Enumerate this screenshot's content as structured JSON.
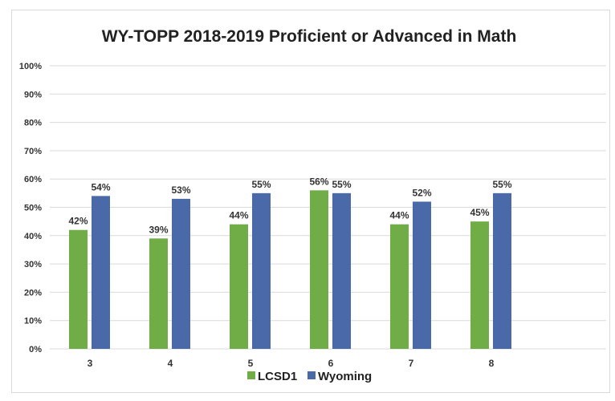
{
  "chart_data": {
    "type": "bar",
    "title": "WY-TOPP 2018-2019 Proficient or Advanced in Math",
    "xlabel": "",
    "ylabel": "",
    "categories": [
      "3",
      "4",
      "5",
      "6",
      "7",
      "8"
    ],
    "series": [
      {
        "name": "LCSD1",
        "color": "#70ad47",
        "values": [
          42,
          39,
          44,
          56,
          44,
          45
        ],
        "labels": [
          "42%",
          "39%",
          "44%",
          "56%",
          "44%",
          "45%"
        ]
      },
      {
        "name": "Wyoming",
        "color": "#4a69a8",
        "values": [
          54,
          53,
          55,
          55,
          52,
          55
        ],
        "labels": [
          "54%",
          "53%",
          "55%",
          "55%",
          "52%",
          "55%"
        ]
      }
    ],
    "ylim": [
      0,
      100
    ],
    "yticks": [
      "0%",
      "10%",
      "20%",
      "30%",
      "40%",
      "50%",
      "60%",
      "70%",
      "80%",
      "90%",
      "100%"
    ],
    "grid": true,
    "legend": "bottom"
  }
}
